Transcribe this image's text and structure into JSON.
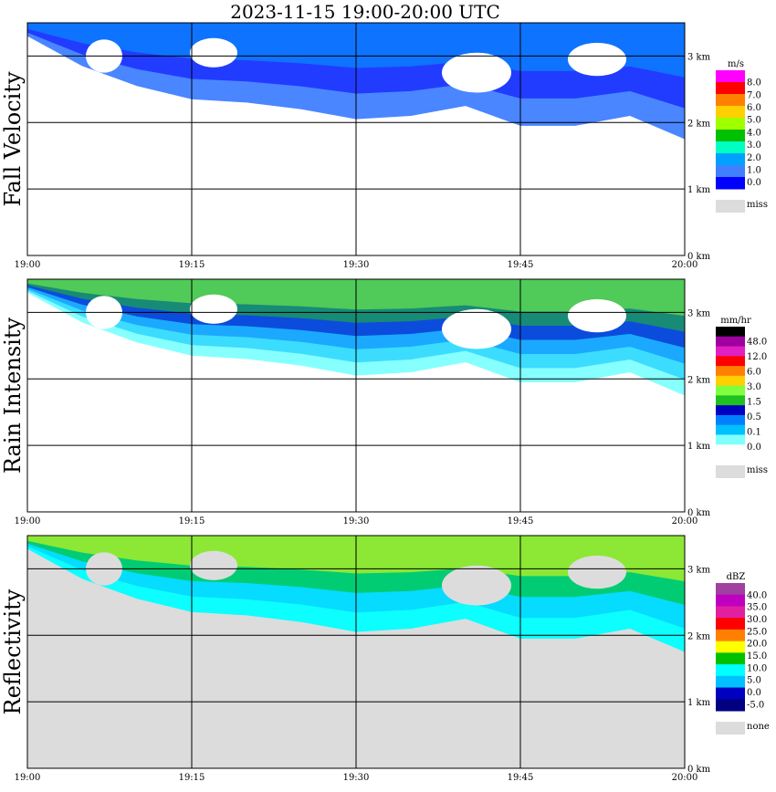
{
  "title": "2023-11-15   19:00-20:00 UTC",
  "chart_data": [
    {
      "type": "heatmap",
      "panel_label": "Fall Velocity",
      "x_ticks": [
        "19:00",
        "19:15",
        "19:30",
        "19:45",
        "20:00"
      ],
      "x_range": [
        "19:00",
        "20:00"
      ],
      "y_ticks": [
        "0 km",
        "1 km",
        "2 km",
        "3 km"
      ],
      "y_range_km": [
        0,
        3.5
      ],
      "grid": true,
      "background_color": "#ffffff",
      "legend": {
        "unit": "m/s",
        "labels": [
          "8.0",
          "7.0",
          "6.0",
          "5.0",
          "4.0",
          "3.0",
          "2.0",
          "1.0",
          "0.0"
        ],
        "colors": [
          "#ff00ff",
          "#ff0000",
          "#ff8000",
          "#ffd000",
          "#a0ff00",
          "#00c000",
          "#00ffc0",
          "#00a0ff",
          "#4080ff",
          "#0000ff"
        ],
        "missing_label": "miss",
        "missing_color": "#dcdcdc"
      },
      "echo_layer": {
        "top_km": 3.5,
        "base_km_by_minute": [
          [
            0,
            3.3
          ],
          [
            5,
            2.85
          ],
          [
            10,
            2.55
          ],
          [
            15,
            2.35
          ],
          [
            20,
            2.3
          ],
          [
            25,
            2.2
          ],
          [
            30,
            2.05
          ],
          [
            35,
            2.1
          ],
          [
            40,
            2.25
          ],
          [
            45,
            1.95
          ],
          [
            50,
            1.95
          ],
          [
            55,
            2.1
          ],
          [
            60,
            1.75
          ]
        ]
      }
    },
    {
      "type": "heatmap",
      "panel_label": "Rain Intensity",
      "x_ticks": [
        "19:00",
        "19:15",
        "19:30",
        "19:45",
        "20:00"
      ],
      "x_range": [
        "19:00",
        "20:00"
      ],
      "y_ticks": [
        "0 km",
        "1 km",
        "2 km",
        "3 km"
      ],
      "y_range_km": [
        0,
        3.5
      ],
      "grid": true,
      "background_color": "#ffffff",
      "legend": {
        "unit": "mm/hr",
        "labels": [
          "48.0",
          "12.0",
          "6.0",
          "3.0",
          "1.5",
          "0.5",
          "0.1",
          "0.0"
        ],
        "colors": [
          "#000000",
          "#a000a0",
          "#e020c0",
          "#ff0000",
          "#ff8000",
          "#ffd000",
          "#80ff40",
          "#20c020",
          "#0000c0",
          "#0080ff",
          "#00c0ff",
          "#80ffff",
          "#ffffff"
        ],
        "missing_label": "miss",
        "missing_color": "#dcdcdc"
      },
      "echo_layer": {
        "top_km": 3.5,
        "base_km_by_minute": [
          [
            0,
            3.3
          ],
          [
            5,
            2.85
          ],
          [
            10,
            2.55
          ],
          [
            15,
            2.35
          ],
          [
            20,
            2.3
          ],
          [
            25,
            2.2
          ],
          [
            30,
            2.05
          ],
          [
            35,
            2.1
          ],
          [
            40,
            2.25
          ],
          [
            45,
            1.95
          ],
          [
            50,
            1.95
          ],
          [
            55,
            2.1
          ],
          [
            60,
            1.75
          ]
        ]
      }
    },
    {
      "type": "heatmap",
      "panel_label": "Reflectivity",
      "x_ticks": [
        "19:00",
        "19:15",
        "19:30",
        "19:45",
        "20:00"
      ],
      "x_range": [
        "19:00",
        "20:00"
      ],
      "y_ticks": [
        "0 km",
        "1 km",
        "2 km",
        "3 km"
      ],
      "y_range_km": [
        0,
        3.5
      ],
      "grid": true,
      "background_color": "#dcdcdc",
      "legend": {
        "unit": "dBZ",
        "labels": [
          "40.0",
          "35.0",
          "30.0",
          "25.0",
          "20.0",
          "15.0",
          "10.0",
          "5.0",
          "0.0",
          "-5.0"
        ],
        "colors": [
          "#a040a0",
          "#c000c0",
          "#e020a0",
          "#ff0000",
          "#ff8000",
          "#ffff00",
          "#00c000",
          "#00ffff",
          "#00c0ff",
          "#0000c0",
          "#000080"
        ],
        "missing_label": "none",
        "missing_color": "#dcdcdc"
      },
      "echo_layer": {
        "top_km": 3.5,
        "base_km_by_minute": [
          [
            0,
            3.3
          ],
          [
            5,
            2.85
          ],
          [
            10,
            2.55
          ],
          [
            15,
            2.35
          ],
          [
            20,
            2.3
          ],
          [
            25,
            2.2
          ],
          [
            30,
            2.05
          ],
          [
            35,
            2.1
          ],
          [
            40,
            2.25
          ],
          [
            45,
            1.95
          ],
          [
            50,
            1.95
          ],
          [
            55,
            2.1
          ],
          [
            60,
            1.75
          ]
        ]
      }
    }
  ]
}
